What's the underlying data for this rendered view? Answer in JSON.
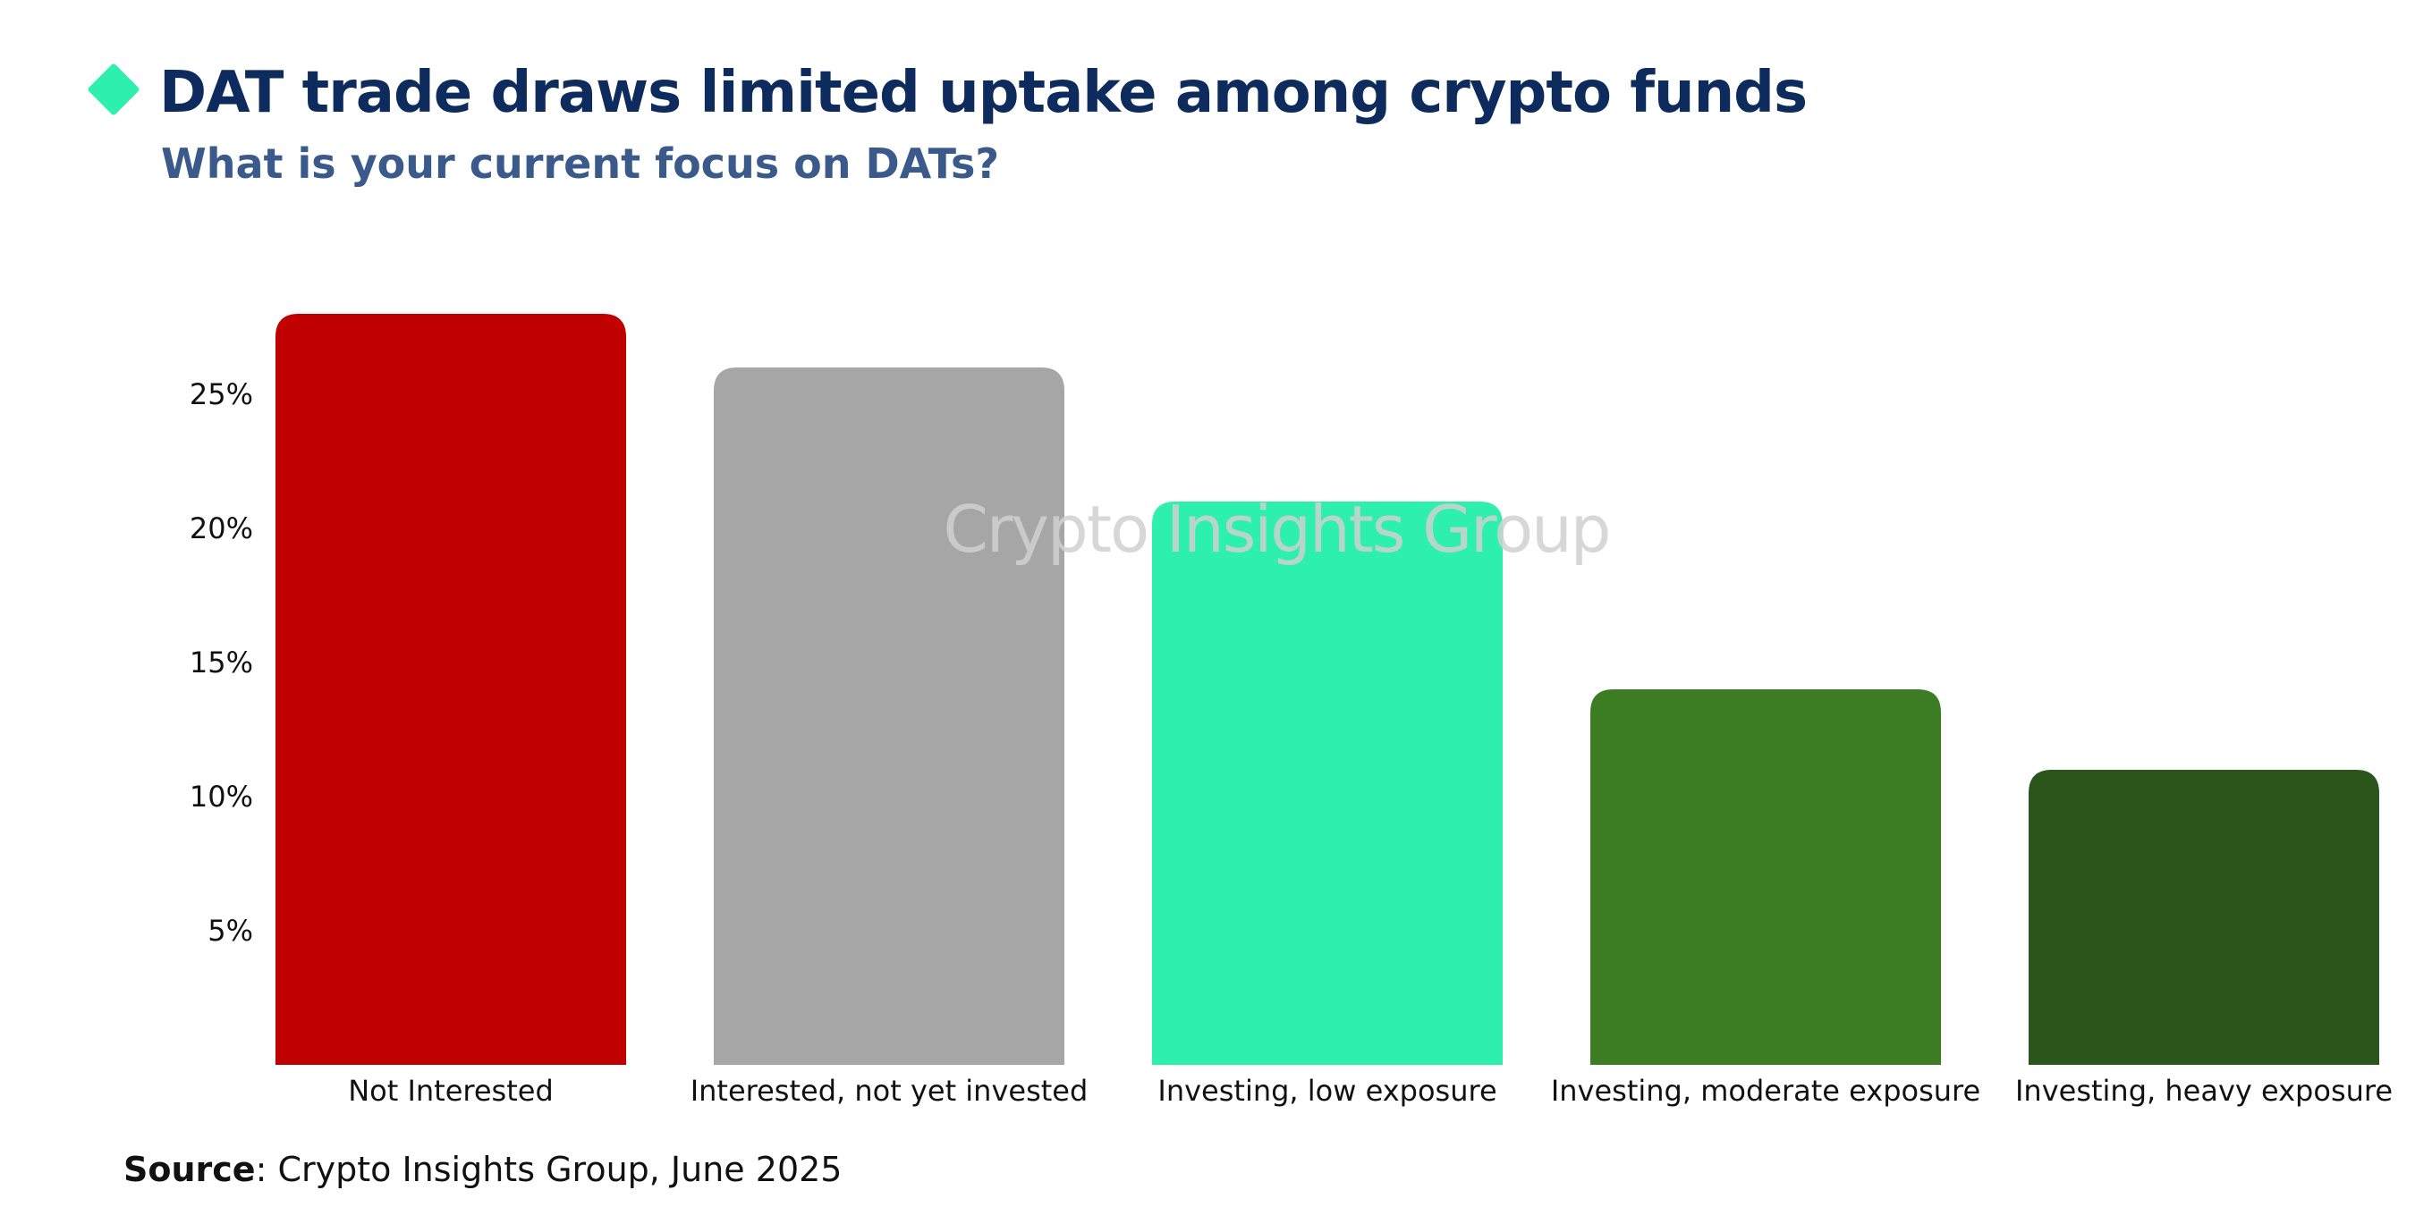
{
  "header": {
    "title": "DAT trade draws limited uptake among crypto funds",
    "subtitle": "What is your current focus on DATs?"
  },
  "colors": {
    "title": "#0d2b5c",
    "subtitle": "#3b5a8c",
    "accent_diamond": "#2ef0ae",
    "watermark": "#d0d0d0",
    "axis_text": "#111111"
  },
  "icons": {
    "header_marker": "diamond-icon"
  },
  "watermark": {
    "text": "Crypto Insights Group"
  },
  "chart_data": {
    "type": "bar",
    "title": "DAT trade draws limited uptake among crypto funds",
    "subtitle": "What is your current focus on DATs?",
    "xlabel": "",
    "ylabel": "",
    "categories": [
      "Not Interested",
      "Interested, not yet invested",
      "Investing, low exposure",
      "Investing, moderate exposure",
      "Investing, heavy exposure"
    ],
    "values": [
      28,
      26,
      21,
      14,
      11
    ],
    "unit": "%",
    "bar_colors": [
      "#c00000",
      "#a6a6a6",
      "#2ef0ae",
      "#3c7d24",
      "#2a561b"
    ],
    "yticks": [
      5,
      10,
      15,
      20,
      25
    ],
    "ytick_labels": [
      "5%",
      "10%",
      "15%",
      "20%",
      "25%"
    ],
    "ylim": [
      0,
      28
    ],
    "grid": false,
    "legend": "none"
  },
  "footer": {
    "source_key": "Source",
    "source_text": ": Crypto Insights Group, June 2025"
  }
}
